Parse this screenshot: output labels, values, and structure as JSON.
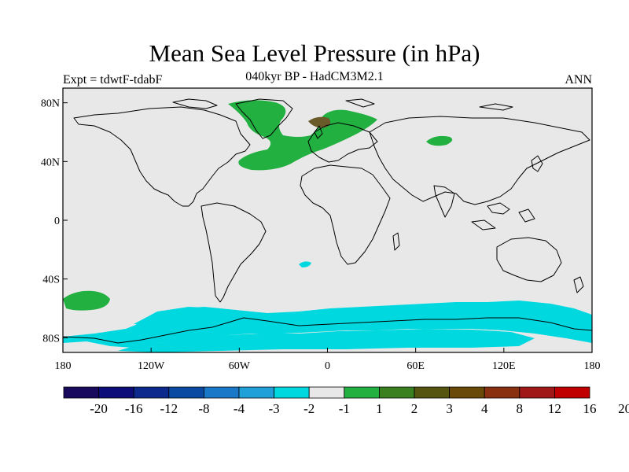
{
  "title": "Mean Sea Level Pressure (in hPa)",
  "subtitle": "040kyr BP - HadCM3M2.1",
  "left_label": "Expt = tdwtF-tdabF",
  "right_label": "ANN",
  "x_ticks": [
    "180",
    "120W",
    "60W",
    "0",
    "60E",
    "120E",
    "180"
  ],
  "y_ticks": [
    "80N",
    "40N",
    "0",
    "40S",
    "80S"
  ],
  "colorbar": {
    "colors": [
      "#1a0a5e",
      "#0d0d7a",
      "#0c2a8e",
      "#0a4aa2",
      "#1a78c8",
      "#20a0d8",
      "#00d8e0",
      "#e8e8e8",
      "#22b040",
      "#3a8020",
      "#555510",
      "#6a4a08",
      "#883010",
      "#a01818",
      "#c00000"
    ],
    "labels": [
      "-20",
      "-16",
      "-12",
      "-8",
      "-4",
      "-3",
      "-2",
      "-1",
      "1",
      "2",
      "3",
      "4",
      "8",
      "12",
      "16",
      "20"
    ]
  },
  "colors": {
    "background": "#e8e8e8",
    "positive_1_2": "#22b040",
    "positive_3_4": "#6a5a2a",
    "negative_2_1": "#00d8e0"
  }
}
